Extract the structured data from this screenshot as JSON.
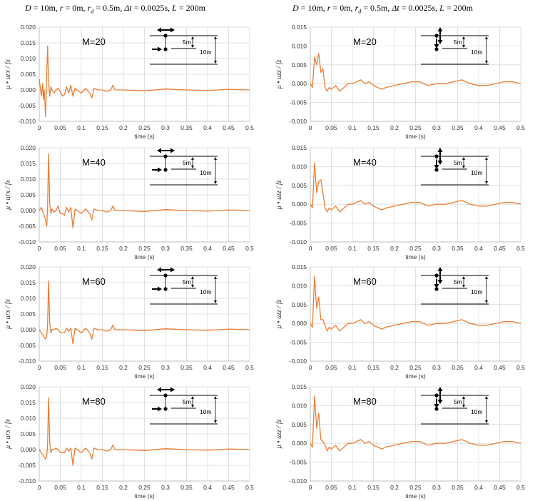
{
  "header": {
    "left": "D = 10m,   r = 0m,   rd = 0.5m,   Δt = 0.0025s,   L = 200m",
    "right": "D = 10m,   r = 0m,   rd = 0.5m,   Δt = 0.0025s,   L = 200m"
  },
  "colors": {
    "series": "#ED7D31",
    "grid": "#D9D9D9",
    "axis": "#BFBFBF"
  },
  "chart_data": [
    {
      "type": "line",
      "component": "horizontal",
      "label": "M=20",
      "xlabel": "time  (s)",
      "ylabel": "μ • urx / fx",
      "xlim": [
        0,
        0.5
      ],
      "ylim": [
        -0.01,
        0.02
      ],
      "xticks": [
        "0",
        "0.05",
        "0.1",
        "0.15",
        "0.2",
        "0.25",
        "0.3",
        "0.35",
        "0.4",
        "0.45",
        "0.5"
      ],
      "yticks": [
        "-0.010",
        "-0.005",
        "0.000",
        "0.005",
        "0.010",
        "0.015",
        "0.020"
      ],
      "diagram_labels": [
        "5m",
        "10m"
      ],
      "x": [
        0,
        0.005,
        0.008,
        0.01,
        0.012,
        0.015,
        0.018,
        0.02,
        0.022,
        0.025,
        0.028,
        0.03,
        0.035,
        0.04,
        0.045,
        0.05,
        0.055,
        0.06,
        0.065,
        0.07,
        0.075,
        0.08,
        0.085,
        0.09,
        0.1,
        0.11,
        0.12,
        0.125,
        0.13,
        0.14,
        0.15,
        0.16,
        0.17,
        0.175,
        0.18,
        0.19,
        0.2,
        0.25,
        0.3,
        0.35,
        0.4,
        0.45,
        0.5
      ],
      "y": [
        0.0035,
        -0.002,
        0.002,
        -0.003,
        0,
        -0.0085,
        0.006,
        0.014,
        0.003,
        -0.002,
        0.001,
        0,
        -0.001,
        0,
        0.0005,
        -0.0005,
        -0.002,
        -0.0015,
        0.001,
        -0.001,
        0.0015,
        -0.002,
        0.0005,
        0,
        -0.001,
        0.0005,
        -0.001,
        -0.0025,
        0.0005,
        0,
        0,
        -0.0005,
        0,
        0.0015,
        0,
        0,
        0,
        -0.0003,
        0.0003,
        0,
        -0.0002,
        0.0002,
        0
      ]
    },
    {
      "type": "line",
      "component": "vertical",
      "label": "M=20",
      "xlabel": "time  (s)",
      "ylabel": "μ • uzz / fz",
      "xlim": [
        0,
        0.5
      ],
      "ylim": [
        -0.01,
        0.015
      ],
      "xticks": [
        "0",
        "0.05",
        "0.1",
        "0.15",
        "0.2",
        "0.25",
        "0.3",
        "0.35",
        "0.4",
        "0.45",
        "0.5"
      ],
      "yticks": [
        "-0.010",
        "-0.005",
        "0.000",
        "0.005",
        "0.010",
        "0.015"
      ],
      "diagram_labels": [
        "5m",
        "10m"
      ],
      "x": [
        0,
        0.005,
        0.01,
        0.015,
        0.02,
        0.025,
        0.03,
        0.035,
        0.04,
        0.045,
        0.05,
        0.06,
        0.07,
        0.08,
        0.09,
        0.1,
        0.11,
        0.12,
        0.13,
        0.14,
        0.15,
        0.16,
        0.17,
        0.18,
        0.2,
        0.22,
        0.24,
        0.26,
        0.28,
        0.3,
        0.32,
        0.34,
        0.36,
        0.38,
        0.4,
        0.42,
        0.44,
        0.46,
        0.48,
        0.5
      ],
      "y": [
        0,
        -0.001,
        0.007,
        0.005,
        0.008,
        0.003,
        0.004,
        -0.001,
        -0.002,
        -0.001,
        -0.0015,
        -0.0005,
        -0.002,
        -0.001,
        0,
        0,
        0.0005,
        0.001,
        0,
        0.0005,
        -0.0005,
        -0.001,
        -0.0015,
        -0.001,
        -0.0005,
        0,
        0.0005,
        0.0005,
        -0.0005,
        0,
        0,
        0.0005,
        0.001,
        0,
        -0.0005,
        -0.0005,
        0,
        0.0005,
        0.0005,
        0
      ]
    },
    {
      "type": "line",
      "component": "horizontal",
      "label": "M=40",
      "xlabel": "time  (s)",
      "ylabel": "μ • urx / fx",
      "xlim": [
        0,
        0.5
      ],
      "ylim": [
        -0.01,
        0.02
      ],
      "xticks": [
        "0",
        "0.05",
        "0.1",
        "0.15",
        "0.2",
        "0.25",
        "0.3",
        "0.35",
        "0.4",
        "0.45",
        "0.5"
      ],
      "yticks": [
        "-0.010",
        "-0.005",
        "0.000",
        "0.005",
        "0.010",
        "0.015",
        "0.020"
      ],
      "diagram_labels": [
        "5m",
        "10m"
      ],
      "x": [
        0,
        0.005,
        0.01,
        0.015,
        0.018,
        0.02,
        0.022,
        0.025,
        0.028,
        0.03,
        0.035,
        0.04,
        0.045,
        0.05,
        0.055,
        0.06,
        0.065,
        0.07,
        0.075,
        0.08,
        0.085,
        0.09,
        0.1,
        0.11,
        0.12,
        0.125,
        0.13,
        0.14,
        0.15,
        0.16,
        0.17,
        0.175,
        0.18,
        0.19,
        0.2,
        0.25,
        0.3,
        0.35,
        0.4,
        0.45,
        0.5
      ],
      "y": [
        0,
        0.001,
        -0.001,
        -0.003,
        -0.005,
        0.002,
        0.018,
        0.002,
        -0.001,
        0.0005,
        -0.0005,
        0,
        0.0015,
        -0.001,
        -0.001,
        -0.0015,
        0.001,
        -0.0005,
        0.001,
        -0.0055,
        0.0005,
        0,
        -0.001,
        0.0005,
        -0.001,
        -0.003,
        0.0005,
        0,
        0,
        -0.0005,
        0,
        0.0015,
        0,
        0,
        0,
        -0.0003,
        0.0003,
        0,
        -0.0002,
        0.0002,
        0
      ]
    },
    {
      "type": "line",
      "component": "vertical",
      "label": "M=40",
      "xlabel": "time  (s)",
      "ylabel": "μ • uzz / fz",
      "xlim": [
        0,
        0.5
      ],
      "ylim": [
        -0.01,
        0.015
      ],
      "xticks": [
        "0",
        "0.05",
        "0.1",
        "0.15",
        "0.2",
        "0.25",
        "0.3",
        "0.35",
        "0.4",
        "0.45",
        "0.5"
      ],
      "yticks": [
        "-0.010",
        "-0.005",
        "0.000",
        "0.005",
        "0.010",
        "0.015"
      ],
      "diagram_labels": [
        "5m",
        "10m"
      ],
      "x": [
        0,
        0.005,
        0.01,
        0.015,
        0.02,
        0.025,
        0.03,
        0.035,
        0.04,
        0.045,
        0.05,
        0.06,
        0.07,
        0.08,
        0.09,
        0.1,
        0.11,
        0.12,
        0.13,
        0.14,
        0.15,
        0.16,
        0.17,
        0.18,
        0.2,
        0.22,
        0.24,
        0.26,
        0.28,
        0.3,
        0.32,
        0.34,
        0.36,
        0.38,
        0.4,
        0.42,
        0.44,
        0.46,
        0.48,
        0.5
      ],
      "y": [
        0,
        -0.001,
        0.011,
        0.003,
        0.006,
        0.0065,
        0.003,
        -0.001,
        -0.002,
        -0.001,
        -0.0015,
        -0.0005,
        -0.002,
        -0.001,
        0,
        0,
        0.0005,
        0.001,
        0,
        0.0005,
        -0.0005,
        -0.001,
        -0.0015,
        -0.001,
        -0.0005,
        0,
        0.0005,
        0.0005,
        -0.0005,
        0,
        0,
        0.0005,
        0.001,
        0,
        -0.0005,
        -0.0005,
        0,
        0.0005,
        0.0005,
        0
      ]
    },
    {
      "type": "line",
      "component": "horizontal",
      "label": "M=60",
      "xlabel": "time  (s)",
      "ylabel": "μ • urx / fx",
      "xlim": [
        0,
        0.5
      ],
      "ylim": [
        -0.01,
        0.02
      ],
      "xticks": [
        "0",
        "0.05",
        "0.1",
        "0.15",
        "0.2",
        "0.25",
        "0.3",
        "0.35",
        "0.4",
        "0.45",
        "0.5"
      ],
      "yticks": [
        "-0.010",
        "-0.005",
        "0.000",
        "0.005",
        "0.010",
        "0.015",
        "0.020"
      ],
      "diagram_labels": [
        "5m",
        "10m"
      ],
      "x": [
        0,
        0.005,
        0.01,
        0.015,
        0.018,
        0.02,
        0.022,
        0.025,
        0.028,
        0.03,
        0.035,
        0.04,
        0.045,
        0.05,
        0.055,
        0.06,
        0.065,
        0.07,
        0.075,
        0.08,
        0.085,
        0.09,
        0.1,
        0.11,
        0.12,
        0.125,
        0.13,
        0.14,
        0.15,
        0.16,
        0.17,
        0.175,
        0.18,
        0.19,
        0.2,
        0.25,
        0.3,
        0.35,
        0.4,
        0.45,
        0.5
      ],
      "y": [
        0,
        -0.001,
        -0.002,
        -0.003,
        -0.002,
        0.002,
        0.0155,
        0.002,
        -0.001,
        0,
        0,
        0.0005,
        0,
        -0.001,
        -0.001,
        -0.001,
        0.0005,
        -0.0005,
        0.0005,
        -0.0045,
        0.0005,
        0,
        -0.001,
        0.0005,
        -0.001,
        -0.003,
        0.0005,
        0,
        0,
        -0.0005,
        0,
        0.0015,
        0,
        0,
        0,
        -0.0003,
        0.0003,
        0,
        -0.0002,
        0.0002,
        0
      ]
    },
    {
      "type": "line",
      "component": "vertical",
      "label": "M=60",
      "xlabel": "time  (s)",
      "ylabel": "μ • uzz / fz",
      "xlim": [
        0,
        0.5
      ],
      "ylim": [
        -0.01,
        0.015
      ],
      "xticks": [
        "0",
        "0.05",
        "0.1",
        "0.15",
        "0.2",
        "0.25",
        "0.3",
        "0.35",
        "0.4",
        "0.45",
        "0.5"
      ],
      "yticks": [
        "-0.010",
        "-0.005",
        "0.000",
        "0.005",
        "0.010",
        "0.015"
      ],
      "diagram_labels": [
        "5m",
        "10m"
      ],
      "x": [
        0,
        0.005,
        0.01,
        0.015,
        0.02,
        0.025,
        0.03,
        0.035,
        0.04,
        0.045,
        0.05,
        0.06,
        0.07,
        0.08,
        0.09,
        0.1,
        0.11,
        0.12,
        0.13,
        0.14,
        0.15,
        0.16,
        0.17,
        0.18,
        0.2,
        0.22,
        0.24,
        0.26,
        0.28,
        0.3,
        0.32,
        0.34,
        0.36,
        0.38,
        0.4,
        0.42,
        0.44,
        0.46,
        0.48,
        0.5
      ],
      "y": [
        0,
        -0.001,
        0.0125,
        0.004,
        0.007,
        0.001,
        0.001,
        -0.0005,
        -0.002,
        -0.001,
        -0.0015,
        -0.0005,
        -0.002,
        -0.001,
        0,
        0,
        0.0005,
        0.001,
        0,
        0.0005,
        -0.0005,
        -0.001,
        -0.0015,
        -0.001,
        -0.0005,
        0,
        0.0005,
        0.0005,
        -0.0005,
        0,
        0,
        0.0005,
        0.001,
        0,
        -0.0005,
        -0.0005,
        0,
        0.0005,
        0.0005,
        0
      ]
    },
    {
      "type": "line",
      "component": "horizontal",
      "label": "M=80",
      "xlabel": "time  (s)",
      "ylabel": "μ • urx / fx",
      "xlim": [
        0,
        0.5
      ],
      "ylim": [
        -0.01,
        0.02
      ],
      "xticks": [
        "0",
        "0.05",
        "0.1",
        "0.15",
        "0.2",
        "0.25",
        "0.3",
        "0.35",
        "0.4",
        "0.45",
        "0.5"
      ],
      "yticks": [
        "-0.010",
        "-0.005",
        "0.000",
        "0.005",
        "0.010",
        "0.015",
        "0.020"
      ],
      "diagram_labels": [
        "5m",
        "10m"
      ],
      "x": [
        0,
        0.005,
        0.01,
        0.015,
        0.018,
        0.02,
        0.022,
        0.025,
        0.028,
        0.03,
        0.035,
        0.04,
        0.045,
        0.05,
        0.055,
        0.06,
        0.065,
        0.07,
        0.075,
        0.08,
        0.085,
        0.09,
        0.1,
        0.11,
        0.12,
        0.125,
        0.13,
        0.14,
        0.15,
        0.16,
        0.17,
        0.175,
        0.18,
        0.19,
        0.2,
        0.25,
        0.3,
        0.35,
        0.4,
        0.45,
        0.5
      ],
      "y": [
        0,
        -0.001,
        -0.002,
        -0.003,
        -0.002,
        0.002,
        0.0165,
        0.002,
        -0.001,
        0,
        0,
        0.0005,
        0,
        -0.001,
        -0.001,
        -0.001,
        0.0005,
        -0.0005,
        0.0005,
        -0.005,
        0.0005,
        0,
        -0.001,
        0.0005,
        -0.001,
        -0.003,
        0.0005,
        0,
        0,
        -0.0005,
        0,
        0.0015,
        0,
        0,
        0,
        -0.0003,
        0.0003,
        0,
        -0.0002,
        0.0002,
        0
      ]
    },
    {
      "type": "line",
      "component": "vertical",
      "label": "M=80",
      "xlabel": "time  (s)",
      "ylabel": "μ • uzz / fz",
      "xlim": [
        0,
        0.5
      ],
      "ylim": [
        -0.01,
        0.015
      ],
      "xticks": [
        "0",
        "0.05",
        "0.1",
        "0.15",
        "0.2",
        "0.25",
        "0.3",
        "0.35",
        "0.4",
        "0.45",
        "0.5"
      ],
      "yticks": [
        "-0.010",
        "-0.005",
        "0.000",
        "0.005",
        "0.010",
        "0.015"
      ],
      "diagram_labels": [
        "5m",
        "10m"
      ],
      "x": [
        0,
        0.005,
        0.01,
        0.015,
        0.02,
        0.025,
        0.03,
        0.035,
        0.04,
        0.045,
        0.05,
        0.06,
        0.07,
        0.08,
        0.09,
        0.1,
        0.11,
        0.12,
        0.13,
        0.14,
        0.15,
        0.16,
        0.17,
        0.18,
        0.2,
        0.22,
        0.24,
        0.26,
        0.28,
        0.3,
        0.32,
        0.34,
        0.36,
        0.38,
        0.4,
        0.42,
        0.44,
        0.46,
        0.48,
        0.5
      ],
      "y": [
        0,
        -0.001,
        0.0125,
        0.004,
        0.008,
        0.001,
        0.0005,
        -0.0005,
        -0.002,
        -0.001,
        -0.0015,
        -0.0005,
        -0.002,
        -0.001,
        0,
        0,
        0.0005,
        0.001,
        0,
        0.0005,
        -0.0005,
        -0.001,
        -0.0015,
        -0.001,
        -0.0005,
        0,
        0.0005,
        0.0005,
        -0.0005,
        0,
        0,
        0.0005,
        0.001,
        0,
        -0.0005,
        -0.0005,
        0,
        0.0005,
        0.0005,
        0
      ]
    }
  ]
}
